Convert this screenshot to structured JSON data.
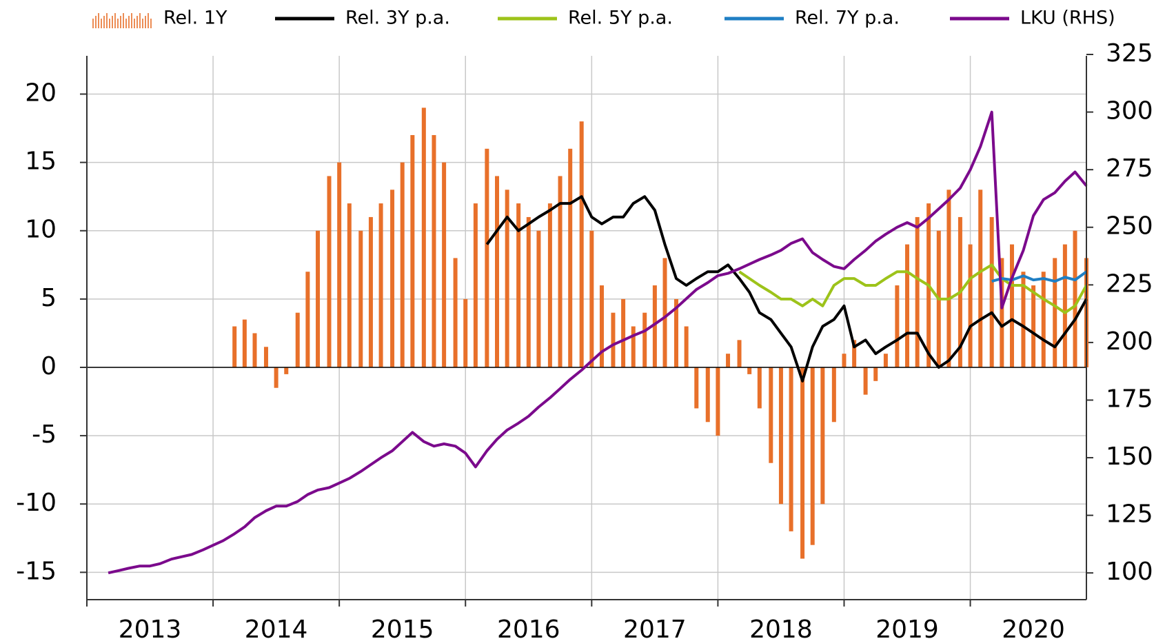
{
  "chart_data": {
    "type": "bar",
    "x": [
      2013.17,
      2013.25,
      2013.33,
      2013.42,
      2013.5,
      2013.58,
      2013.67,
      2013.75,
      2013.83,
      2013.92,
      2014.0,
      2014.08,
      2014.17,
      2014.25,
      2014.33,
      2014.42,
      2014.5,
      2014.58,
      2014.67,
      2014.75,
      2014.83,
      2014.92,
      2015.0,
      2015.08,
      2015.17,
      2015.25,
      2015.33,
      2015.42,
      2015.5,
      2015.58,
      2015.67,
      2015.75,
      2015.83,
      2015.92,
      2016.0,
      2016.08,
      2016.17,
      2016.25,
      2016.33,
      2016.42,
      2016.5,
      2016.58,
      2016.67,
      2016.75,
      2016.83,
      2016.92,
      2017.0,
      2017.08,
      2017.17,
      2017.25,
      2017.33,
      2017.42,
      2017.5,
      2017.58,
      2017.67,
      2017.75,
      2017.83,
      2017.92,
      2018.0,
      2018.08,
      2018.17,
      2018.25,
      2018.33,
      2018.42,
      2018.5,
      2018.58,
      2018.67,
      2018.75,
      2018.83,
      2018.92,
      2019.0,
      2019.08,
      2019.17,
      2019.25,
      2019.33,
      2019.42,
      2019.5,
      2019.58,
      2019.67,
      2019.75,
      2019.83,
      2019.92,
      2020.0,
      2020.08,
      2020.17,
      2020.25,
      2020.33,
      2020.42,
      2020.5,
      2020.58,
      2020.67,
      2020.75,
      2020.83,
      2020.92
    ],
    "series": [
      {
        "name": "Rel. 1Y",
        "type": "bar",
        "color": "#e8702a",
        "values": [
          null,
          null,
          null,
          null,
          null,
          null,
          null,
          null,
          null,
          null,
          null,
          null,
          3,
          3.5,
          2.5,
          1.5,
          -1.5,
          -0.5,
          4,
          7,
          10,
          14,
          15,
          12,
          10,
          11,
          12,
          13,
          15,
          17,
          19,
          17,
          15,
          8,
          5,
          12,
          16,
          14,
          13,
          12,
          11,
          10,
          12,
          14,
          16,
          18,
          10,
          6,
          4,
          5,
          3,
          4,
          6,
          8,
          5,
          3,
          -3,
          -4,
          -5,
          1,
          2,
          -0.5,
          -3,
          -7,
          -10,
          -12,
          -14,
          -13,
          -10,
          -4,
          1,
          2,
          -2,
          -1,
          1,
          6,
          9,
          11,
          12,
          10,
          13,
          11,
          9,
          13,
          11,
          8,
          9,
          7,
          6,
          7,
          8,
          9,
          10,
          8
        ]
      },
      {
        "name": "Rel. 3Y p.a.",
        "type": "line",
        "color": "#000000",
        "values": [
          null,
          null,
          null,
          null,
          null,
          null,
          null,
          null,
          null,
          null,
          null,
          null,
          null,
          null,
          null,
          null,
          null,
          null,
          null,
          null,
          null,
          null,
          null,
          null,
          null,
          null,
          null,
          null,
          null,
          null,
          null,
          null,
          null,
          null,
          null,
          null,
          9,
          10,
          11,
          10,
          10.5,
          11,
          11.5,
          12,
          12,
          12.5,
          11,
          10.5,
          11,
          11,
          12,
          12.5,
          11.5,
          9,
          6.5,
          6,
          6.5,
          7,
          7,
          7.5,
          6.5,
          5.5,
          4,
          3.5,
          2.5,
          1.5,
          -1,
          1.5,
          3,
          3.5,
          4.5,
          1.5,
          2,
          1,
          1.5,
          2,
          2.5,
          2.5,
          1,
          0,
          0.5,
          1.5,
          3,
          3.5,
          4,
          3,
          3.5,
          3,
          2.5,
          2,
          1.5,
          2.5,
          3.5,
          5
        ]
      },
      {
        "name": "Rel. 5Y p.a.",
        "type": "line",
        "color": "#9dc31a",
        "values": [
          null,
          null,
          null,
          null,
          null,
          null,
          null,
          null,
          null,
          null,
          null,
          null,
          null,
          null,
          null,
          null,
          null,
          null,
          null,
          null,
          null,
          null,
          null,
          null,
          null,
          null,
          null,
          null,
          null,
          null,
          null,
          null,
          null,
          null,
          null,
          null,
          null,
          null,
          null,
          null,
          null,
          null,
          null,
          null,
          null,
          null,
          null,
          null,
          null,
          null,
          null,
          null,
          null,
          null,
          null,
          null,
          null,
          null,
          null,
          null,
          7,
          6.5,
          6,
          5.5,
          5,
          5,
          4.5,
          5,
          4.5,
          6,
          6.5,
          6.5,
          6,
          6,
          6.5,
          7,
          7,
          6.5,
          6,
          5,
          5,
          5.5,
          6.5,
          7,
          7.5,
          6.5,
          6,
          6,
          5.5,
          5,
          4.5,
          4,
          4.5,
          6
        ]
      },
      {
        "name": "Rel. 7Y p.a.",
        "type": "line",
        "color": "#1f7fc4",
        "values": [
          null,
          null,
          null,
          null,
          null,
          null,
          null,
          null,
          null,
          null,
          null,
          null,
          null,
          null,
          null,
          null,
          null,
          null,
          null,
          null,
          null,
          null,
          null,
          null,
          null,
          null,
          null,
          null,
          null,
          null,
          null,
          null,
          null,
          null,
          null,
          null,
          null,
          null,
          null,
          null,
          null,
          null,
          null,
          null,
          null,
          null,
          null,
          null,
          null,
          null,
          null,
          null,
          null,
          null,
          null,
          null,
          null,
          null,
          null,
          null,
          null,
          null,
          null,
          null,
          null,
          null,
          null,
          null,
          null,
          null,
          null,
          null,
          null,
          null,
          null,
          null,
          null,
          null,
          null,
          null,
          null,
          null,
          null,
          null,
          6.3,
          6.5,
          6.4,
          6.7,
          6.4,
          6.5,
          6.3,
          6.6,
          6.4,
          7
        ]
      },
      {
        "name": "LKU (RHS)",
        "type": "line",
        "axis": "y2",
        "color": "#7b0a8c",
        "values": [
          100,
          101,
          102,
          103,
          103,
          104,
          106,
          107,
          108,
          110,
          112,
          114,
          117,
          120,
          124,
          127,
          129,
          129,
          131,
          134,
          136,
          137,
          139,
          141,
          144,
          147,
          150,
          153,
          157,
          161,
          157,
          155,
          156,
          155,
          152,
          146,
          153,
          158,
          162,
          165,
          168,
          172,
          176,
          180,
          184,
          188,
          192,
          196,
          199,
          201,
          203,
          205,
          208,
          211,
          215,
          219,
          223,
          226,
          229,
          230,
          232,
          234,
          236,
          238,
          240,
          243,
          245,
          239,
          236,
          233,
          232,
          236,
          240,
          244,
          247,
          250,
          252,
          250,
          254,
          258,
          262,
          267,
          275,
          285,
          300,
          215,
          228,
          240,
          255,
          262,
          265,
          270,
          274,
          268
        ]
      }
    ],
    "xlim": [
      2013,
      2020.92
    ],
    "xticks": [
      2013,
      2014,
      2015,
      2016,
      2017,
      2018,
      2019,
      2020
    ],
    "ylim": [
      -17,
      22.8
    ],
    "yticks": [
      -15,
      -10,
      -5,
      0,
      5,
      10,
      15,
      20
    ],
    "y2lim": [
      88.4,
      324.4
    ],
    "y2ticks": [
      100,
      125,
      150,
      175,
      200,
      225,
      250,
      275,
      300,
      325
    ],
    "grid": true,
    "legend": "top"
  }
}
